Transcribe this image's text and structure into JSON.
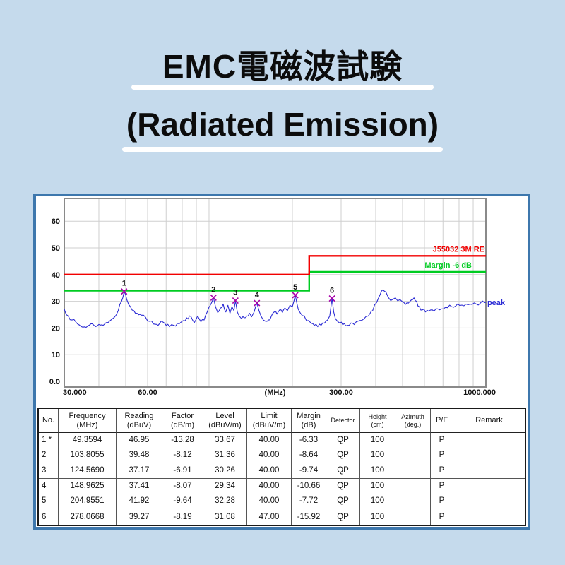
{
  "page": {
    "background": "#c5daec",
    "panel_border": "#3d77ad"
  },
  "header": {
    "title": "EMC電磁波試験",
    "subtitle": "(Radiated Emission)"
  },
  "chart_data": {
    "type": "line",
    "xlabel": "(MHz)",
    "x_scale": "log",
    "xlim": [
      30,
      1000
    ],
    "ylim": [
      0,
      68
    ],
    "grid": true,
    "x_ticks": [
      {
        "f": 30,
        "label": "30.000",
        "anchor": "start"
      },
      {
        "f": 60,
        "label": "60.00",
        "anchor": "middle"
      },
      {
        "f": 300,
        "label": "300.00",
        "anchor": "middle"
      },
      {
        "f": 1000,
        "label": "1000.000",
        "anchor": "end"
      }
    ],
    "x_axis_title": "(MHz)",
    "x_minor_gridlines": [
      40,
      50,
      60,
      70,
      80,
      90,
      100,
      200,
      300,
      400,
      500,
      600,
      700,
      800,
      900
    ],
    "y_ticks": [
      {
        "v": 0,
        "label": "0.0"
      },
      {
        "v": 10,
        "label": "10"
      },
      {
        "v": 20,
        "label": "20"
      },
      {
        "v": 30,
        "label": "30"
      },
      {
        "v": 40,
        "label": "40"
      },
      {
        "v": 50,
        "label": "50"
      },
      {
        "v": 60,
        "label": "60"
      }
    ],
    "limit_line": {
      "label": "J55032 3M RE",
      "color": "#f20000",
      "points": [
        [
          30,
          40
        ],
        [
          230,
          40
        ],
        [
          230,
          47
        ],
        [
          1000,
          47
        ]
      ]
    },
    "margin_line": {
      "label": "Margin -6 dB",
      "color": "#00cc22",
      "points": [
        [
          30,
          34
        ],
        [
          230,
          34
        ],
        [
          230,
          41
        ],
        [
          1000,
          41
        ]
      ]
    },
    "trace": {
      "name": "peak",
      "label": "peak",
      "color": "#2b2bd4",
      "points": [
        [
          30,
          27
        ],
        [
          31,
          24.5
        ],
        [
          32,
          23
        ],
        [
          33.5,
          21.5
        ],
        [
          35,
          20.3
        ],
        [
          36.5,
          20.8
        ],
        [
          38,
          21.5
        ],
        [
          39.5,
          20.8
        ],
        [
          41,
          21.2
        ],
        [
          42.5,
          22
        ],
        [
          44,
          22.8
        ],
        [
          45.5,
          24
        ],
        [
          47,
          26.5
        ],
        [
          48.3,
          30
        ],
        [
          49.36,
          33.5
        ],
        [
          50.5,
          30.5
        ],
        [
          52,
          28
        ],
        [
          53.5,
          26.5
        ],
        [
          55,
          25.5
        ],
        [
          57,
          24.8
        ],
        [
          59,
          24
        ],
        [
          61,
          22.5
        ],
        [
          63,
          21.5
        ],
        [
          65.5,
          21
        ],
        [
          68,
          22.3
        ],
        [
          70,
          21
        ],
        [
          72,
          20.5
        ],
        [
          74.5,
          21
        ],
        [
          77,
          21.8
        ],
        [
          80,
          22.5
        ],
        [
          83,
          23.8
        ],
        [
          86,
          24.3
        ],
        [
          88.5,
          22
        ],
        [
          91,
          24.5
        ],
        [
          93.5,
          22.3
        ],
        [
          96,
          23
        ],
        [
          98.5,
          26
        ],
        [
          101,
          28.5
        ],
        [
          103.8,
          31.36
        ],
        [
          105.5,
          28
        ],
        [
          107.5,
          25.8
        ],
        [
          110,
          27.5
        ],
        [
          112.5,
          29
        ],
        [
          115,
          26
        ],
        [
          117,
          28.5
        ],
        [
          119,
          25.5
        ],
        [
          121,
          28
        ],
        [
          123,
          26.5
        ],
        [
          124.57,
          30.26
        ],
        [
          126.5,
          26
        ],
        [
          128.5,
          24.5
        ],
        [
          131,
          23.5
        ],
        [
          134,
          23.8
        ],
        [
          137,
          24.5
        ],
        [
          140,
          25.5
        ],
        [
          142.5,
          24.2
        ],
        [
          145.5,
          26
        ],
        [
          148.96,
          29.34
        ],
        [
          151.5,
          26.5
        ],
        [
          154,
          24.5
        ],
        [
          157,
          23
        ],
        [
          160,
          22.5
        ],
        [
          164,
          23
        ],
        [
          168,
          24.5
        ],
        [
          172,
          26
        ],
        [
          176,
          25.2
        ],
        [
          180,
          26.8
        ],
        [
          184,
          25.8
        ],
        [
          188,
          27.5
        ],
        [
          192,
          26.5
        ],
        [
          196,
          28.5
        ],
        [
          200,
          28
        ],
        [
          202.5,
          30
        ],
        [
          204.96,
          32.28
        ],
        [
          207.5,
          29.5
        ],
        [
          210,
          27
        ],
        [
          214,
          25.5
        ],
        [
          218,
          24.5
        ],
        [
          223,
          23.5
        ],
        [
          228,
          22.8
        ],
        [
          234,
          21.8
        ],
        [
          240,
          21
        ],
        [
          247,
          20.5
        ],
        [
          254,
          21
        ],
        [
          261,
          21.8
        ],
        [
          268,
          23
        ],
        [
          273,
          24.5
        ],
        [
          278.07,
          31.08
        ],
        [
          282,
          26
        ],
        [
          286,
          23.5
        ],
        [
          291,
          22.5
        ],
        [
          297,
          21.8
        ],
        [
          304,
          21.2
        ],
        [
          312,
          20.8
        ],
        [
          321,
          21
        ],
        [
          330,
          21.8
        ],
        [
          340,
          22.3
        ],
        [
          351,
          22.8
        ],
        [
          363,
          23.5
        ],
        [
          376,
          24.5
        ],
        [
          390,
          26.5
        ],
        [
          403,
          29.5
        ],
        [
          415,
          32.5
        ],
        [
          425,
          34.3
        ],
        [
          435,
          33.5
        ],
        [
          444,
          31.5
        ],
        [
          453,
          30.3
        ],
        [
          462,
          30.8
        ],
        [
          471,
          31.3
        ],
        [
          480,
          30.2
        ],
        [
          490,
          30.6
        ],
        [
          500,
          29.8
        ],
        [
          512,
          28.8
        ],
        [
          525,
          29.3
        ],
        [
          538,
          30.5
        ],
        [
          550,
          31.3
        ],
        [
          562,
          30
        ],
        [
          575,
          28
        ],
        [
          590,
          26.8
        ],
        [
          605,
          26
        ],
        [
          622,
          26.3
        ],
        [
          640,
          26.8
        ],
        [
          660,
          27.2
        ],
        [
          680,
          26.8
        ],
        [
          703,
          27.2
        ],
        [
          727,
          27.6
        ],
        [
          752,
          28
        ],
        [
          778,
          28.2
        ],
        [
          805,
          28.4
        ],
        [
          833,
          28.3
        ],
        [
          862,
          28.7
        ],
        [
          892,
          28.8
        ],
        [
          923,
          29
        ],
        [
          955,
          29.3
        ],
        [
          988,
          29.5
        ],
        [
          1000,
          29.6
        ]
      ]
    },
    "markers": {
      "color": "#a800a8",
      "items": [
        {
          "no": "1",
          "f": 49.3594,
          "level": 33.67
        },
        {
          "no": "2",
          "f": 103.8055,
          "level": 31.36
        },
        {
          "no": "3",
          "f": 124.569,
          "level": 30.26
        },
        {
          "no": "4",
          "f": 148.9625,
          "level": 29.34
        },
        {
          "no": "5",
          "f": 204.9551,
          "level": 32.28
        },
        {
          "no": "6",
          "f": 278.0668,
          "level": 31.08
        }
      ]
    }
  },
  "table": {
    "headers": [
      {
        "l1": "No.",
        "l2": "",
        "size": "normal"
      },
      {
        "l1": "Frequency",
        "l2": "(MHz)",
        "size": "normal"
      },
      {
        "l1": "Reading",
        "l2": "(dBuV)",
        "size": "normal"
      },
      {
        "l1": "Factor",
        "l2": "(dB/m)",
        "size": "normal"
      },
      {
        "l1": "Level",
        "l2": "(dBuV/m)",
        "size": "normal"
      },
      {
        "l1": "Limit",
        "l2": "(dBuV/m)",
        "size": "normal"
      },
      {
        "l1": "Margin",
        "l2": "(dB)",
        "size": "normal"
      },
      {
        "l1": "Detector",
        "l2": "",
        "size": "small"
      },
      {
        "l1": "Height",
        "l2": "(cm)",
        "size": "small"
      },
      {
        "l1": "Azimuth",
        "l2": "(deg.)",
        "size": "small"
      },
      {
        "l1": "P/F",
        "l2": "",
        "size": "normal"
      },
      {
        "l1": "Remark",
        "l2": "",
        "size": "normal"
      }
    ],
    "rows": [
      [
        "1 *",
        "49.3594",
        "46.95",
        "-13.28",
        "33.67",
        "40.00",
        "-6.33",
        "QP",
        "100",
        "",
        "P",
        ""
      ],
      [
        "2",
        "103.8055",
        "39.48",
        "-8.12",
        "31.36",
        "40.00",
        "-8.64",
        "QP",
        "100",
        "",
        "P",
        ""
      ],
      [
        "3",
        "124.5690",
        "37.17",
        "-6.91",
        "30.26",
        "40.00",
        "-9.74",
        "QP",
        "100",
        "",
        "P",
        ""
      ],
      [
        "4",
        "148.9625",
        "37.41",
        "-8.07",
        "29.34",
        "40.00",
        "-10.66",
        "QP",
        "100",
        "",
        "P",
        ""
      ],
      [
        "5",
        "204.9551",
        "41.92",
        "-9.64",
        "32.28",
        "40.00",
        "-7.72",
        "QP",
        "100",
        "",
        "P",
        ""
      ],
      [
        "6",
        "278.0668",
        "39.27",
        "-8.19",
        "31.08",
        "47.00",
        "-15.92",
        "QP",
        "100",
        "",
        "P",
        ""
      ]
    ]
  }
}
